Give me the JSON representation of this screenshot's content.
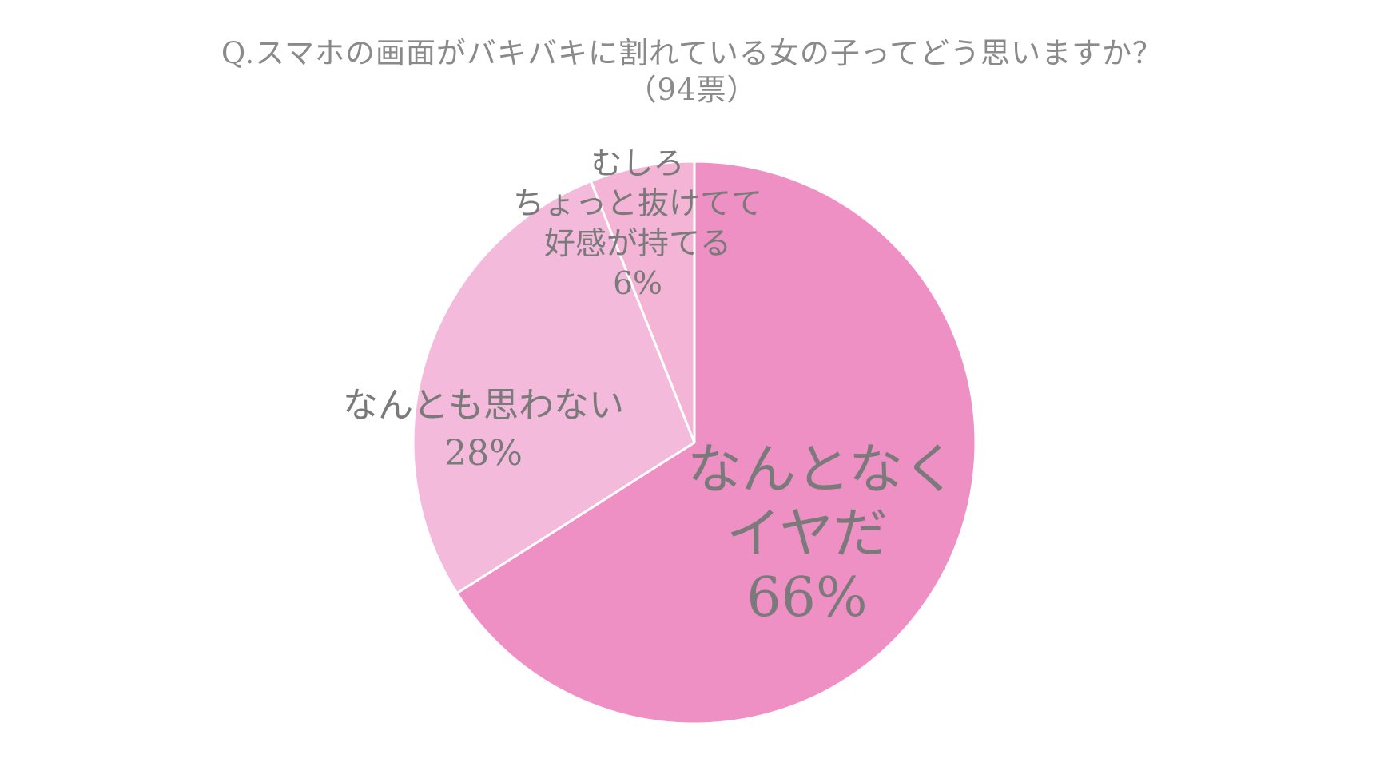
{
  "chart_data": {
    "type": "pie",
    "title": "Q.スマホの画面がバキバキに割れている女の子ってどう思いますか？",
    "subtitle": "（94票）",
    "slices": [
      {
        "label_lines": [
          "なんとなく",
          "イヤだ"
        ],
        "value": 66,
        "value_label": "66%",
        "color": "#ef90c5"
      },
      {
        "label_lines": [
          "なんとも思わない"
        ],
        "value": 28,
        "value_label": "28%",
        "color": "#f3badb"
      },
      {
        "label_lines": [
          "むしろ",
          "ちょっと抜けてて",
          "好感が持てる"
        ],
        "value": 6,
        "value_label": "6%",
        "color": "#f4b4d6"
      }
    ],
    "start_angle_deg": 0,
    "direction": "clockwise",
    "separator_color": "#ffffff",
    "legend": "none"
  }
}
